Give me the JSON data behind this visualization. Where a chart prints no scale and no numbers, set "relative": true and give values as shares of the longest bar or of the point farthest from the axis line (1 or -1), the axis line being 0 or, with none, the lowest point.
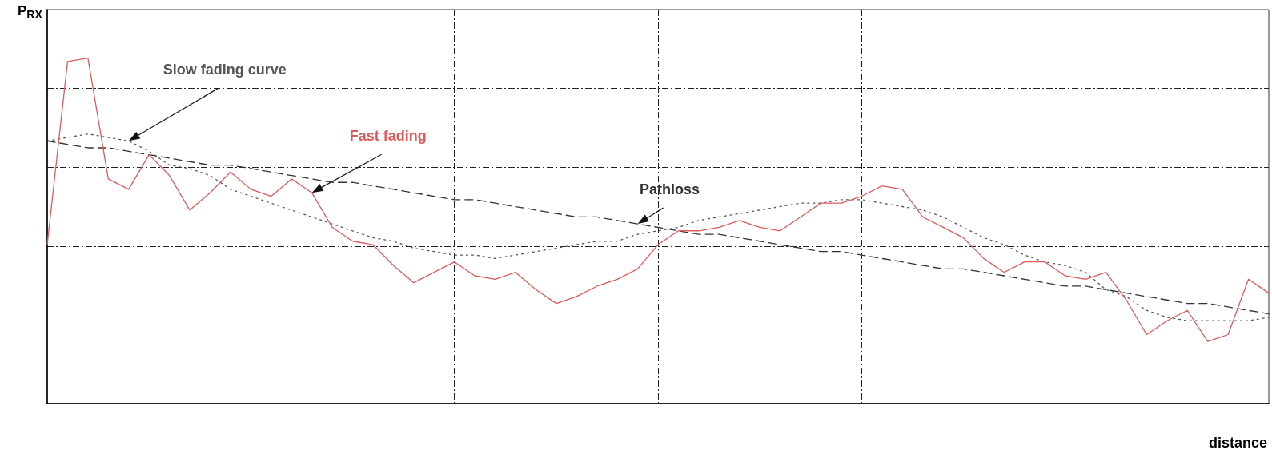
{
  "chart_data": {
    "type": "line",
    "relative": true,
    "xlabel": "distance",
    "ylabel": "P$_{RX}$",
    "grid": true,
    "legend": false,
    "marker": "none",
    "categories": [
      null,
      null,
      null,
      null,
      null,
      null,
      null,
      null,
      null,
      null,
      null,
      null,
      null,
      null,
      null,
      null,
      null,
      null,
      null,
      null,
      null,
      null,
      null,
      null,
      null,
      null,
      null,
      null,
      null,
      null,
      null,
      null,
      null,
      null,
      null,
      null,
      null,
      null,
      null,
      null,
      null,
      null,
      null,
      null,
      null,
      null,
      null,
      null,
      null,
      null,
      null,
      null,
      null,
      null,
      null,
      null,
      null,
      null,
      null,
      null,
      null
    ],
    "series": [
      {
        "name": "Fast fading",
        "color": "#e05a5a",
        "line_style": "solid",
        "values": [
          0.46,
          0.99,
          1.0,
          0.65,
          0.62,
          0.72,
          0.66,
          0.56,
          0.61,
          0.67,
          0.62,
          0.6,
          0.65,
          0.61,
          0.51,
          0.47,
          0.46,
          0.4,
          0.35,
          0.38,
          0.41,
          0.37,
          0.36,
          0.38,
          0.33,
          0.29,
          0.31,
          0.34,
          0.36,
          0.39,
          0.46,
          0.5,
          0.5,
          0.51,
          0.53,
          0.51,
          0.5,
          0.54,
          0.58,
          0.58,
          0.6,
          0.63,
          0.62,
          0.54,
          0.51,
          0.48,
          0.42,
          0.38,
          0.41,
          0.41,
          0.37,
          0.36,
          0.38,
          0.3,
          0.2,
          0.24,
          0.27,
          0.18,
          0.2,
          0.36,
          0.32
        ]
      },
      {
        "name": "Slow fading curve",
        "color": "#555555",
        "line_style": "dotted",
        "values": [
          0.76,
          0.77,
          0.78,
          0.77,
          0.76,
          0.73,
          0.69,
          0.68,
          0.66,
          0.62,
          0.6,
          0.58,
          0.56,
          0.54,
          0.52,
          0.5,
          0.48,
          0.47,
          0.45,
          0.44,
          0.43,
          0.43,
          0.42,
          0.43,
          0.44,
          0.45,
          0.46,
          0.47,
          0.47,
          0.49,
          0.5,
          0.51,
          0.53,
          0.54,
          0.55,
          0.56,
          0.57,
          0.58,
          0.58,
          0.59,
          0.59,
          0.58,
          0.57,
          0.56,
          0.54,
          0.51,
          0.48,
          0.46,
          0.43,
          0.41,
          0.4,
          0.38,
          0.33,
          0.31,
          0.27,
          0.25,
          0.24,
          0.24,
          0.24,
          0.24,
          0.25
        ]
      },
      {
        "name": "Pathloss",
        "color": "#333333",
        "line_style": "dashed",
        "values": [
          0.76,
          0.75,
          0.74,
          0.74,
          0.73,
          0.72,
          0.71,
          0.7,
          0.69,
          0.69,
          0.68,
          0.67,
          0.66,
          0.65,
          0.64,
          0.64,
          0.63,
          0.62,
          0.61,
          0.6,
          0.59,
          0.59,
          0.58,
          0.57,
          0.56,
          0.55,
          0.54,
          0.54,
          0.53,
          0.52,
          0.51,
          0.5,
          0.49,
          0.49,
          0.48,
          0.47,
          0.46,
          0.45,
          0.44,
          0.44,
          0.43,
          0.42,
          0.41,
          0.4,
          0.39,
          0.39,
          0.38,
          0.37,
          0.36,
          0.35,
          0.34,
          0.34,
          0.33,
          0.32,
          0.31,
          0.3,
          0.29,
          0.29,
          0.28,
          0.27,
          0.26
        ]
      }
    ]
  }
}
